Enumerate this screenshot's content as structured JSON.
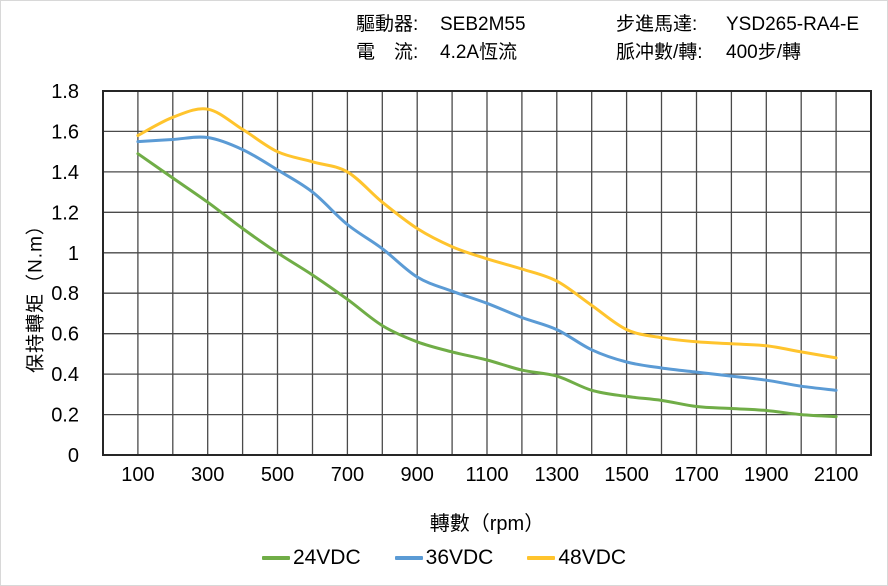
{
  "header": {
    "left": [
      {
        "label": "驅動器:",
        "value": "SEB2M55"
      },
      {
        "label": "電　流:",
        "value": "4.2A恆流"
      }
    ],
    "right": [
      {
        "label": "步進馬達:",
        "value": "YSD265-RA4-E"
      },
      {
        "label": "脈冲數/轉:",
        "value": "400步/轉"
      }
    ]
  },
  "chart_data": {
    "type": "line",
    "title": "",
    "xlabel": "轉數（rpm）",
    "ylabel": "保持轉矩（N.m）",
    "xlim": [
      0,
      2200
    ],
    "ylim": [
      0,
      1.8
    ],
    "x_grid_step": 100,
    "y_grid_step": 0.2,
    "xticks": [
      100,
      300,
      500,
      700,
      900,
      1100,
      1300,
      1500,
      1700,
      1900,
      2100
    ],
    "yticks": [
      0,
      0.2,
      0.4,
      0.6,
      0.8,
      1,
      1.2,
      1.4,
      1.6,
      1.8
    ],
    "grid": true,
    "legend_position": "bottom",
    "x": [
      100,
      200,
      300,
      400,
      500,
      600,
      700,
      800,
      900,
      1000,
      1100,
      1200,
      1300,
      1400,
      1500,
      1600,
      1700,
      1800,
      1900,
      2000,
      2100
    ],
    "series": [
      {
        "name": "24VDC",
        "color": "#70AD47",
        "values": [
          1.49,
          1.37,
          1.25,
          1.12,
          1.0,
          0.89,
          0.77,
          0.64,
          0.56,
          0.51,
          0.47,
          0.42,
          0.39,
          0.32,
          0.29,
          0.27,
          0.24,
          0.23,
          0.22,
          0.2,
          0.19
        ]
      },
      {
        "name": "36VDC",
        "color": "#5B9BD5",
        "values": [
          1.55,
          1.56,
          1.57,
          1.51,
          1.41,
          1.3,
          1.14,
          1.02,
          0.88,
          0.81,
          0.75,
          0.68,
          0.62,
          0.52,
          0.46,
          0.43,
          0.41,
          0.39,
          0.37,
          0.34,
          0.32
        ]
      },
      {
        "name": "48VDC",
        "color": "#FFC42D",
        "values": [
          1.58,
          1.67,
          1.71,
          1.61,
          1.5,
          1.45,
          1.4,
          1.25,
          1.12,
          1.03,
          0.97,
          0.92,
          0.86,
          0.74,
          0.62,
          0.58,
          0.56,
          0.55,
          0.54,
          0.51,
          0.48
        ]
      }
    ],
    "axis_color": "#262626",
    "grid_color": "#4a4a4a",
    "tick_font_size": 20
  }
}
